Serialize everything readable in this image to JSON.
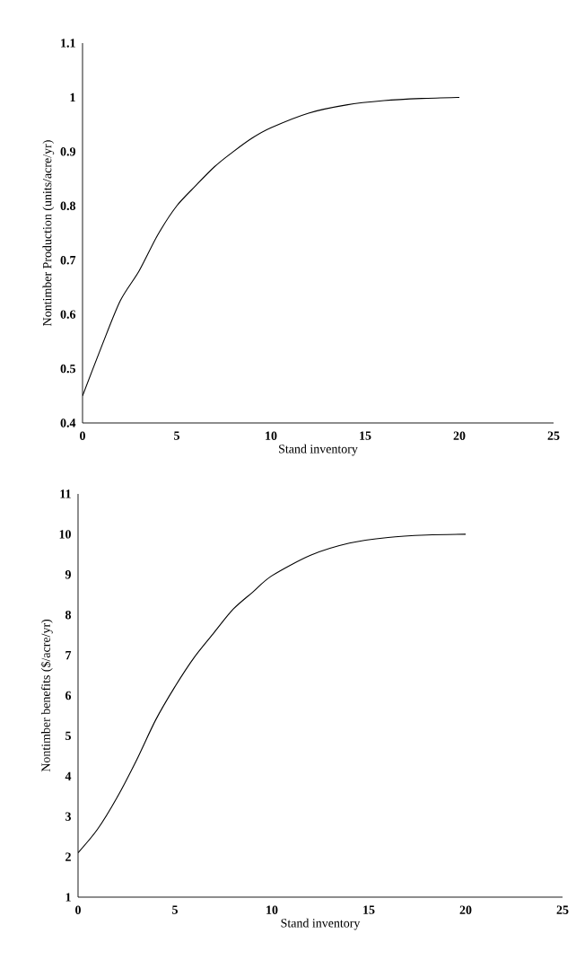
{
  "chart_data": [
    {
      "type": "line",
      "xlabel": "Stand inventory",
      "ylabel": "Nontimber Production (units/acre/yr)",
      "xlim": [
        0,
        25
      ],
      "ylim": [
        0.4,
        1.1
      ],
      "xticks": [
        0,
        5,
        10,
        15,
        20,
        25
      ],
      "yticks": [
        0.4,
        0.5,
        0.6,
        0.7,
        0.8,
        0.9,
        1,
        1.1
      ],
      "series": [
        {
          "color": "#000000",
          "x": [
            0,
            1,
            2,
            3,
            4,
            5,
            6,
            7,
            8,
            9,
            10,
            12,
            14,
            16,
            18,
            20
          ],
          "values": [
            0.45,
            0.54,
            0.625,
            0.68,
            0.747,
            0.8,
            0.837,
            0.872,
            0.9,
            0.925,
            0.944,
            0.971,
            0.986,
            0.994,
            0.998,
            1.0
          ]
        }
      ]
    },
    {
      "type": "line",
      "xlabel": "Stand inventory",
      "ylabel": "Nontimber benefits ($/acre/yr)",
      "xlim": [
        0,
        25
      ],
      "ylim": [
        1,
        11
      ],
      "xticks": [
        0,
        5,
        10,
        15,
        20,
        25
      ],
      "yticks": [
        1,
        2,
        3,
        4,
        5,
        6,
        7,
        8,
        9,
        10,
        11
      ],
      "series": [
        {
          "color": "#000000",
          "x": [
            0,
            1,
            2,
            3,
            4,
            5,
            6,
            7,
            8,
            9,
            10,
            12,
            14,
            16,
            18,
            20
          ],
          "values": [
            2.1,
            2.68,
            3.46,
            4.38,
            5.39,
            6.22,
            6.95,
            7.55,
            8.14,
            8.56,
            8.97,
            9.48,
            9.78,
            9.92,
            9.98,
            10.0
          ]
        }
      ]
    }
  ]
}
